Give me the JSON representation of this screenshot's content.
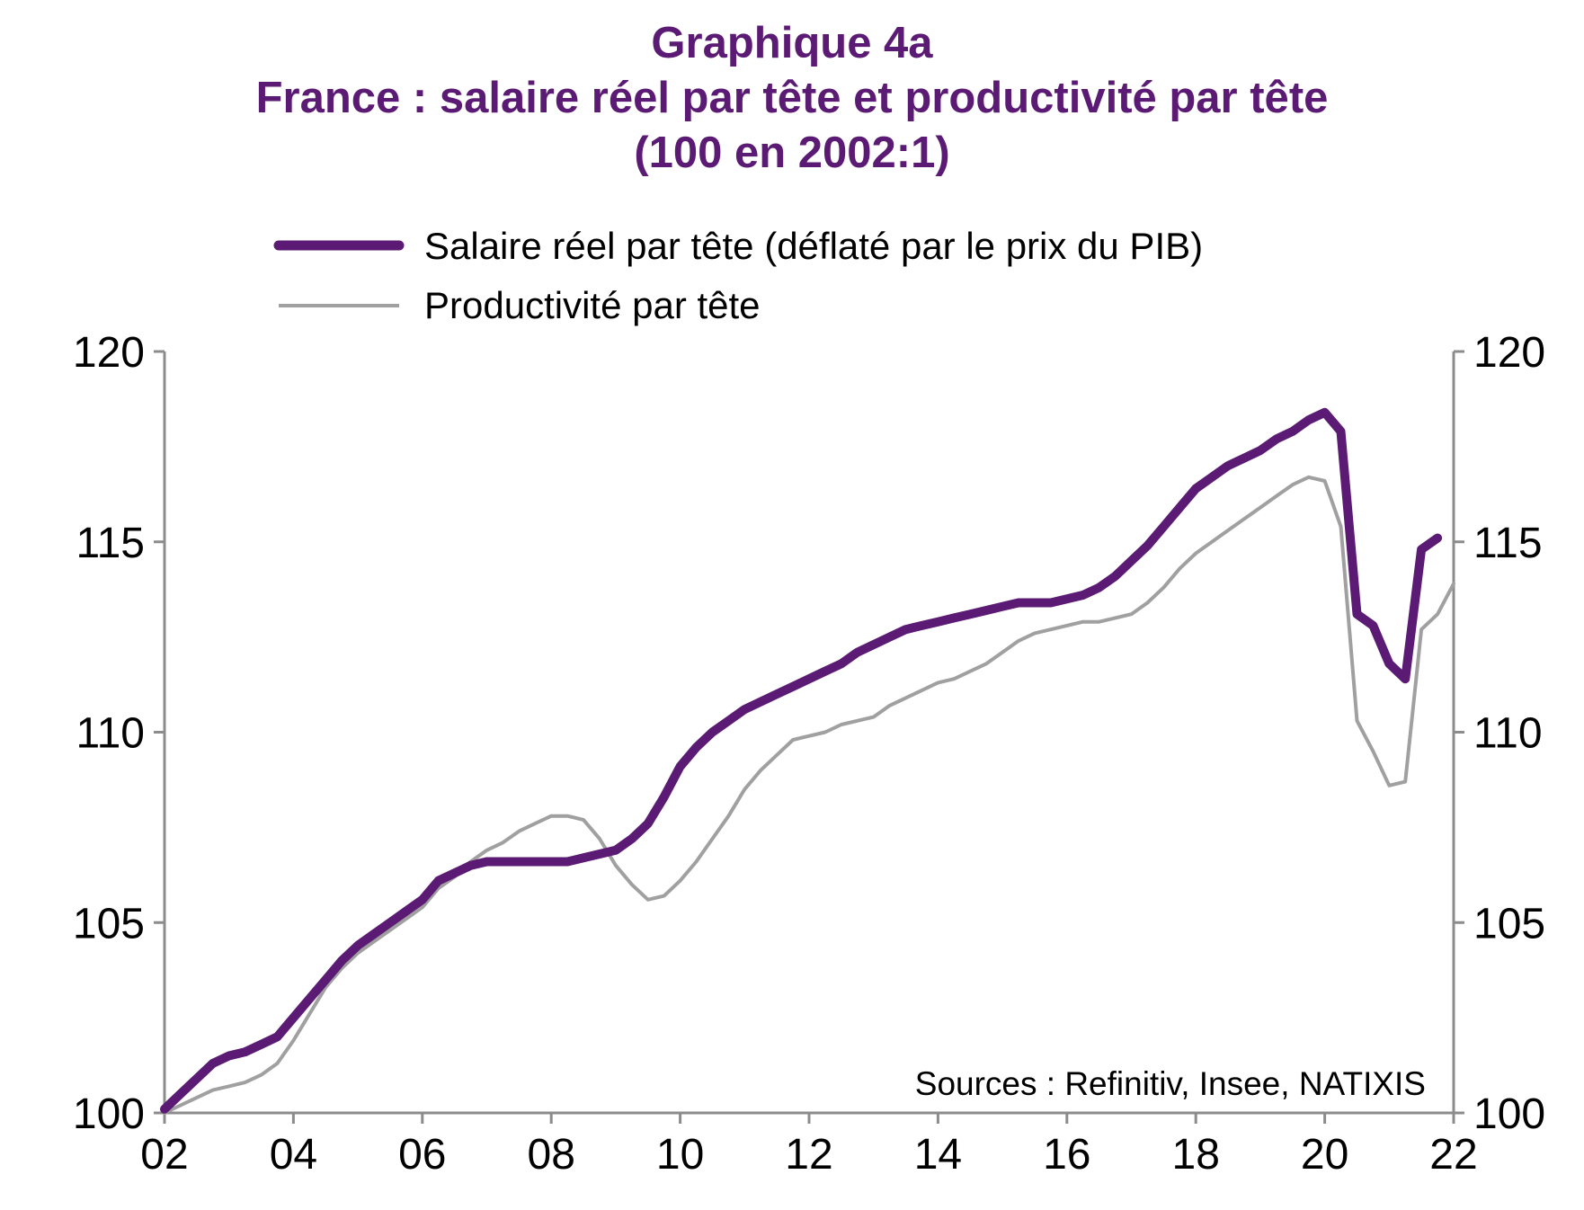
{
  "chart_data": {
    "type": "line",
    "title_lines": [
      "Graphique 4a",
      "France : salaire réel par tête et productivité par tête",
      "(100 en 2002:1)"
    ],
    "x_tick_labels": [
      "02",
      "04",
      "06",
      "08",
      "10",
      "12",
      "14",
      "16",
      "18",
      "20",
      "22"
    ],
    "y_tick_labels_left": [
      "100",
      "105",
      "110",
      "115",
      "120"
    ],
    "y_tick_labels_right": [
      "100",
      "105",
      "110",
      "115",
      "120"
    ],
    "xlim": [
      2002,
      2022
    ],
    "ylim": [
      100,
      120
    ],
    "legend_position": "top-left",
    "source": "Sources : Refinitiv, Insee, NATIXIS",
    "series": [
      {
        "name": "Salaire réel par tête (déflaté par le prix du PIB)",
        "color": "#5b1a73",
        "points": [
          [
            2002.0,
            100.1
          ],
          [
            2002.25,
            100.5
          ],
          [
            2002.5,
            100.9
          ],
          [
            2002.75,
            101.3
          ],
          [
            2003.0,
            101.5
          ],
          [
            2003.25,
            101.6
          ],
          [
            2003.5,
            101.8
          ],
          [
            2003.75,
            102.0
          ],
          [
            2004.0,
            102.5
          ],
          [
            2004.25,
            103.0
          ],
          [
            2004.5,
            103.5
          ],
          [
            2004.75,
            104.0
          ],
          [
            2005.0,
            104.4
          ],
          [
            2005.25,
            104.7
          ],
          [
            2005.5,
            105.0
          ],
          [
            2005.75,
            105.3
          ],
          [
            2006.0,
            105.6
          ],
          [
            2006.25,
            106.1
          ],
          [
            2006.5,
            106.3
          ],
          [
            2006.75,
            106.5
          ],
          [
            2007.0,
            106.6
          ],
          [
            2007.25,
            106.6
          ],
          [
            2007.5,
            106.6
          ],
          [
            2007.75,
            106.6
          ],
          [
            2008.0,
            106.6
          ],
          [
            2008.25,
            106.6
          ],
          [
            2008.5,
            106.7
          ],
          [
            2008.75,
            106.8
          ],
          [
            2009.0,
            106.9
          ],
          [
            2009.25,
            107.2
          ],
          [
            2009.5,
            107.6
          ],
          [
            2009.75,
            108.3
          ],
          [
            2010.0,
            109.1
          ],
          [
            2010.25,
            109.6
          ],
          [
            2010.5,
            110.0
          ],
          [
            2010.75,
            110.3
          ],
          [
            2011.0,
            110.6
          ],
          [
            2011.25,
            110.8
          ],
          [
            2011.5,
            111.0
          ],
          [
            2011.75,
            111.2
          ],
          [
            2012.0,
            111.4
          ],
          [
            2012.25,
            111.6
          ],
          [
            2012.5,
            111.8
          ],
          [
            2012.75,
            112.1
          ],
          [
            2013.0,
            112.3
          ],
          [
            2013.25,
            112.5
          ],
          [
            2013.5,
            112.7
          ],
          [
            2013.75,
            112.8
          ],
          [
            2014.0,
            112.9
          ],
          [
            2014.25,
            113.0
          ],
          [
            2014.5,
            113.1
          ],
          [
            2014.75,
            113.2
          ],
          [
            2015.0,
            113.3
          ],
          [
            2015.25,
            113.4
          ],
          [
            2015.5,
            113.4
          ],
          [
            2015.75,
            113.4
          ],
          [
            2016.0,
            113.5
          ],
          [
            2016.25,
            113.6
          ],
          [
            2016.5,
            113.8
          ],
          [
            2016.75,
            114.1
          ],
          [
            2017.0,
            114.5
          ],
          [
            2017.25,
            114.9
          ],
          [
            2017.5,
            115.4
          ],
          [
            2017.75,
            115.9
          ],
          [
            2018.0,
            116.4
          ],
          [
            2018.25,
            116.7
          ],
          [
            2018.5,
            117.0
          ],
          [
            2018.75,
            117.2
          ],
          [
            2019.0,
            117.4
          ],
          [
            2019.25,
            117.7
          ],
          [
            2019.5,
            117.9
          ],
          [
            2019.75,
            118.2
          ],
          [
            2020.0,
            118.4
          ],
          [
            2020.25,
            117.9
          ],
          [
            2020.5,
            113.1
          ],
          [
            2020.75,
            112.8
          ],
          [
            2021.0,
            111.8
          ],
          [
            2021.25,
            111.4
          ],
          [
            2021.5,
            114.8
          ],
          [
            2021.75,
            115.1
          ]
        ]
      },
      {
        "name": "Productivité par tête",
        "color": "#a0a0a0",
        "points": [
          [
            2002.0,
            100.0
          ],
          [
            2002.25,
            100.2
          ],
          [
            2002.5,
            100.4
          ],
          [
            2002.75,
            100.6
          ],
          [
            2003.0,
            100.7
          ],
          [
            2003.25,
            100.8
          ],
          [
            2003.5,
            101.0
          ],
          [
            2003.75,
            101.3
          ],
          [
            2004.0,
            101.9
          ],
          [
            2004.25,
            102.6
          ],
          [
            2004.5,
            103.3
          ],
          [
            2004.75,
            103.8
          ],
          [
            2005.0,
            104.2
          ],
          [
            2005.25,
            104.5
          ],
          [
            2005.5,
            104.8
          ],
          [
            2005.75,
            105.1
          ],
          [
            2006.0,
            105.4
          ],
          [
            2006.25,
            105.9
          ],
          [
            2006.5,
            106.2
          ],
          [
            2006.75,
            106.6
          ],
          [
            2007.0,
            106.9
          ],
          [
            2007.25,
            107.1
          ],
          [
            2007.5,
            107.4
          ],
          [
            2007.75,
            107.6
          ],
          [
            2008.0,
            107.8
          ],
          [
            2008.25,
            107.8
          ],
          [
            2008.5,
            107.7
          ],
          [
            2008.75,
            107.2
          ],
          [
            2009.0,
            106.5
          ],
          [
            2009.25,
            106.0
          ],
          [
            2009.5,
            105.6
          ],
          [
            2009.75,
            105.7
          ],
          [
            2010.0,
            106.1
          ],
          [
            2010.25,
            106.6
          ],
          [
            2010.5,
            107.2
          ],
          [
            2010.75,
            107.8
          ],
          [
            2011.0,
            108.5
          ],
          [
            2011.25,
            109.0
          ],
          [
            2011.5,
            109.4
          ],
          [
            2011.75,
            109.8
          ],
          [
            2012.0,
            109.9
          ],
          [
            2012.25,
            110.0
          ],
          [
            2012.5,
            110.2
          ],
          [
            2012.75,
            110.3
          ],
          [
            2013.0,
            110.4
          ],
          [
            2013.25,
            110.7
          ],
          [
            2013.5,
            110.9
          ],
          [
            2013.75,
            111.1
          ],
          [
            2014.0,
            111.3
          ],
          [
            2014.25,
            111.4
          ],
          [
            2014.5,
            111.6
          ],
          [
            2014.75,
            111.8
          ],
          [
            2015.0,
            112.1
          ],
          [
            2015.25,
            112.4
          ],
          [
            2015.5,
            112.6
          ],
          [
            2015.75,
            112.7
          ],
          [
            2016.0,
            112.8
          ],
          [
            2016.25,
            112.9
          ],
          [
            2016.5,
            112.9
          ],
          [
            2016.75,
            113.0
          ],
          [
            2017.0,
            113.1
          ],
          [
            2017.25,
            113.4
          ],
          [
            2017.5,
            113.8
          ],
          [
            2017.75,
            114.3
          ],
          [
            2018.0,
            114.7
          ],
          [
            2018.25,
            115.0
          ],
          [
            2018.5,
            115.3
          ],
          [
            2018.75,
            115.6
          ],
          [
            2019.0,
            115.9
          ],
          [
            2019.25,
            116.2
          ],
          [
            2019.5,
            116.5
          ],
          [
            2019.75,
            116.7
          ],
          [
            2020.0,
            116.6
          ],
          [
            2020.25,
            115.4
          ],
          [
            2020.5,
            110.3
          ],
          [
            2020.75,
            109.5
          ],
          [
            2021.0,
            108.6
          ],
          [
            2021.25,
            108.7
          ],
          [
            2021.5,
            112.7
          ],
          [
            2021.75,
            113.1
          ],
          [
            2022.0,
            113.9
          ]
        ]
      }
    ]
  }
}
